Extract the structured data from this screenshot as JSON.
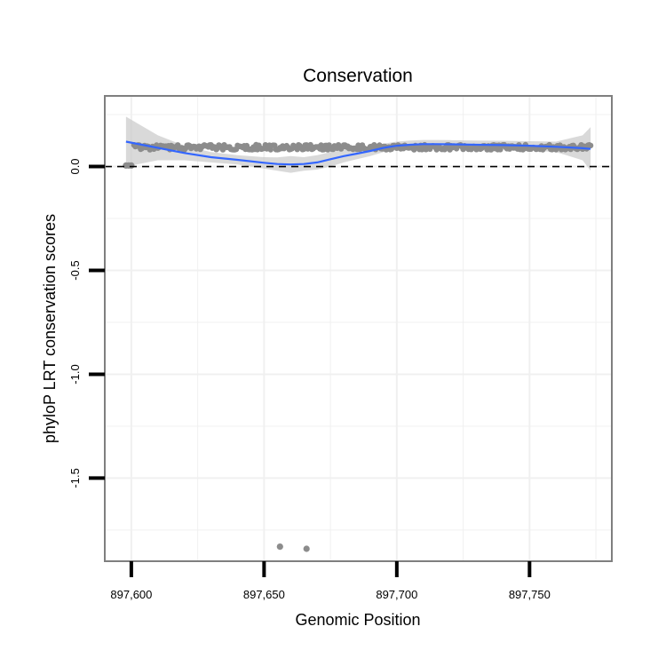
{
  "chart_data": {
    "type": "scatter",
    "title": "Conservation",
    "xlabel": "Genomic Position",
    "ylabel": "phyloP LRT conservation scores",
    "xlim": [
      897590,
      897781
    ],
    "ylim": [
      -1.9,
      0.34
    ],
    "x_ticks": [
      897600,
      897650,
      897700,
      897750
    ],
    "x_tick_labels": [
      "897,600",
      "897,650",
      "897,700",
      "897,750"
    ],
    "y_ticks": [
      0.0,
      -0.5,
      -1.0,
      -1.5
    ],
    "y_tick_labels": [
      "0.0",
      "-0.5",
      "-1.0",
      "-1.5"
    ],
    "grid": true,
    "reference_line": {
      "y": 0,
      "style": "dashed",
      "color": "#000000"
    },
    "colors": {
      "points": "#8c8c8c",
      "smooth": "#3366ff",
      "ribbon": "#cccccc",
      "panel_border": "#7f7f7f",
      "grid": "#f0f0f0"
    },
    "points_dense": {
      "x_start": 897601,
      "x_end": 897773,
      "base_y": 0.093,
      "jitter": 0.012
    },
    "points_outliers": [
      {
        "x": 897598,
        "y": 0.005
      },
      {
        "x": 897599,
        "y": 0.005
      },
      {
        "x": 897600,
        "y": 0.005
      },
      {
        "x": 897656,
        "y": -1.83
      },
      {
        "x": 897666,
        "y": -1.84
      }
    ],
    "smooth_line": {
      "x": [
        897598,
        897610,
        897620,
        897630,
        897640,
        897650,
        897655,
        897660,
        897665,
        897670,
        897675,
        897680,
        897685,
        897690,
        897695,
        897700,
        897705,
        897710,
        897715,
        897720,
        897730,
        897740,
        897750,
        897760,
        897770,
        897773
      ],
      "y": [
        0.12,
        0.09,
        0.065,
        0.045,
        0.032,
        0.018,
        0.012,
        0.01,
        0.012,
        0.02,
        0.035,
        0.05,
        0.062,
        0.075,
        0.09,
        0.1,
        0.105,
        0.108,
        0.108,
        0.107,
        0.105,
        0.103,
        0.1,
        0.095,
        0.088,
        0.085
      ],
      "lower": [
        0.0,
        0.03,
        0.03,
        0.02,
        0.01,
        -0.01,
        -0.02,
        -0.03,
        -0.02,
        -0.015,
        0.0,
        0.02,
        0.035,
        0.05,
        0.07,
        0.08,
        0.085,
        0.088,
        0.088,
        0.087,
        0.085,
        0.082,
        0.078,
        0.07,
        0.03,
        -0.02
      ],
      "upper": [
        0.24,
        0.15,
        0.1,
        0.07,
        0.055,
        0.045,
        0.044,
        0.05,
        0.045,
        0.055,
        0.07,
        0.08,
        0.09,
        0.1,
        0.11,
        0.12,
        0.125,
        0.128,
        0.128,
        0.127,
        0.125,
        0.124,
        0.122,
        0.12,
        0.15,
        0.19
      ]
    }
  }
}
